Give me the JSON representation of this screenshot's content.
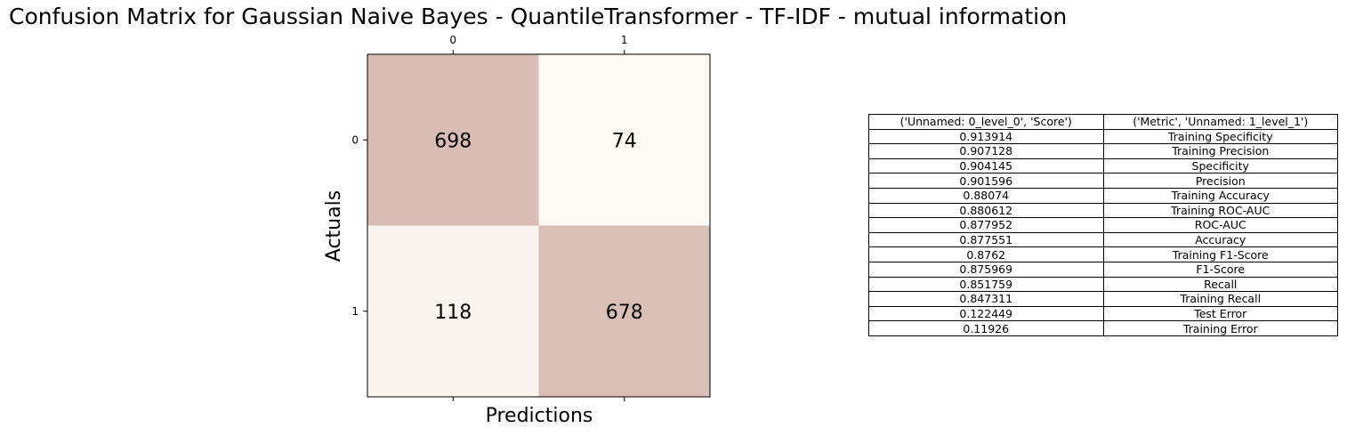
{
  "title": "Confusion Matrix for Gaussian Naive Bayes - QuantileTransformer - TF-IDF - mutual information",
  "chart_data": [
    {
      "type": "heatmap",
      "title": "Confusion Matrix for Gaussian Naive Bayes - QuantileTransformer - TF-IDF - mutual information",
      "xlabel": "Predictions",
      "ylabel": "Actuals",
      "x_ticks": [
        "0",
        "1"
      ],
      "y_ticks": [
        "0",
        "1"
      ],
      "x_tick_position": "top",
      "values": [
        [
          698,
          74
        ],
        [
          118,
          678
        ]
      ],
      "colors": {
        "low": "#fcf8f4",
        "high": "#d9bdb4"
      }
    },
    {
      "type": "table",
      "columns": [
        "('Unnamed: 0_level_0', 'Score')",
        "('Metric', 'Unnamed: 1_level_1')"
      ],
      "rows": [
        [
          "0.913914",
          "Training Specificity"
        ],
        [
          "0.907128",
          "Training Precision"
        ],
        [
          "0.904145",
          "Specificity"
        ],
        [
          "0.901596",
          "Precision"
        ],
        [
          "0.88074",
          "Training Accuracy"
        ],
        [
          "0.880612",
          "Training ROC-AUC"
        ],
        [
          "0.877952",
          "ROC-AUC"
        ],
        [
          "0.877551",
          "Accuracy"
        ],
        [
          "0.8762",
          "Training F1-Score"
        ],
        [
          "0.875969",
          "F1-Score"
        ],
        [
          "0.851759",
          "Recall"
        ],
        [
          "0.847311",
          "Training Recall"
        ],
        [
          "0.122449",
          "Test Error"
        ],
        [
          "0.11926",
          "Training Error"
        ]
      ]
    }
  ]
}
